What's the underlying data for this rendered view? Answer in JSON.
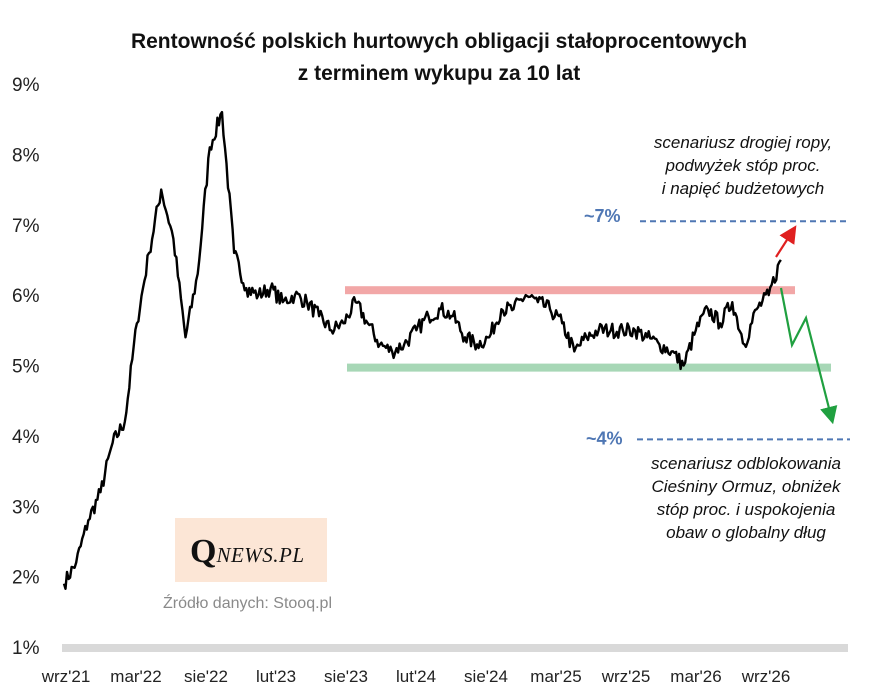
{
  "chart_data": {
    "type": "line",
    "title": "Rentowność polskich hurtowych obligacji stałoprocentowych z terminem wykupu za 10 lat",
    "title_lines": [
      "Rentowność polskich hurtowych obligacji stałoprocentowych",
      "z terminem wykupu za 10 lat"
    ],
    "ylim": [
      1,
      9
    ],
    "y_ticks": [
      "1%",
      "2%",
      "3%",
      "4%",
      "5%",
      "6%",
      "7%",
      "8%",
      "9%"
    ],
    "x_ticks": [
      "wrz'21",
      "mar'22",
      "sie'22",
      "lut'23",
      "sie'23",
      "lut'24",
      "sie'24",
      "mar'25",
      "wrz'25",
      "mar'26",
      "wrz'26"
    ],
    "grid": false,
    "legend": "none",
    "series": [
      {
        "color": "#000000",
        "points": [
          [
            "2021-09",
            1.9
          ],
          [
            "2021-10",
            2.2
          ],
          [
            "2021-11",
            2.8
          ],
          [
            "2021-12",
            3.2
          ],
          [
            "2022-01",
            3.9
          ],
          [
            "2022-02",
            4.2
          ],
          [
            "2022-03",
            5.6
          ],
          [
            "2022-04",
            6.6
          ],
          [
            "2022-05",
            7.5
          ],
          [
            "2022-06",
            6.8
          ],
          [
            "2022-07",
            5.4
          ],
          [
            "2022-08",
            6.3
          ],
          [
            "2022-09",
            8.1
          ],
          [
            "2022-10",
            8.6
          ],
          [
            "2022-11",
            6.6
          ],
          [
            "2022-12",
            6.1
          ],
          [
            "2023-01",
            6.0
          ],
          [
            "2023-02",
            6.1
          ],
          [
            "2023-03",
            5.9
          ],
          [
            "2023-04",
            6.0
          ],
          [
            "2023-05",
            5.9
          ],
          [
            "2023-06",
            5.7
          ],
          [
            "2023-07",
            5.5
          ],
          [
            "2023-08",
            5.6
          ],
          [
            "2023-09",
            5.9
          ],
          [
            "2023-10",
            5.6
          ],
          [
            "2023-11",
            5.3
          ],
          [
            "2023-12",
            5.2
          ],
          [
            "2024-01",
            5.3
          ],
          [
            "2024-02",
            5.5
          ],
          [
            "2024-03",
            5.7
          ],
          [
            "2024-04",
            5.8
          ],
          [
            "2024-05",
            5.7
          ],
          [
            "2024-06",
            5.4
          ],
          [
            "2024-07",
            5.3
          ],
          [
            "2024-08",
            5.4
          ],
          [
            "2024-09",
            5.8
          ],
          [
            "2024-10",
            5.8
          ],
          [
            "2024-11",
            6.0
          ],
          [
            "2024-12",
            5.9
          ],
          [
            "2025-01",
            5.8
          ],
          [
            "2025-02",
            5.6
          ],
          [
            "2025-03",
            5.2
          ],
          [
            "2025-04",
            5.4
          ],
          [
            "2025-05",
            5.5
          ],
          [
            "2025-06",
            5.5
          ],
          [
            "2025-07",
            5.5
          ],
          [
            "2025-08",
            5.5
          ],
          [
            "2025-09",
            5.4
          ],
          [
            "2025-10",
            5.3
          ],
          [
            "2025-11",
            5.2
          ],
          [
            "2025-12",
            5.0
          ],
          [
            "2026-01",
            5.5
          ],
          [
            "2026-02",
            5.8
          ],
          [
            "2026-03",
            5.6
          ],
          [
            "2026-04",
            5.9
          ],
          [
            "2026-05",
            5.3
          ],
          [
            "2026-06",
            5.8
          ],
          [
            "2026-07",
            6.0
          ],
          [
            "2026-08",
            6.5
          ]
        ]
      }
    ],
    "bands": [
      {
        "y": 6.07,
        "color": "#f2a7a7"
      },
      {
        "y": 4.97,
        "color": "#a7d7b6"
      }
    ],
    "levels": [
      {
        "label": "~7%",
        "y": 7.05
      },
      {
        "label": "~4%",
        "y": 3.95
      }
    ],
    "scenario_up": {
      "color": "#e02020",
      "lines": [
        "scenariusz drogiej ropy,",
        "podwyżek stóp proc.",
        "i napięć budżetowych"
      ]
    },
    "scenario_down": {
      "color": "#20a040",
      "lines": [
        "scenariusz odblokowania",
        "Cieśniny Ormuz, obniżek",
        "stóp proc. i uspokojenia",
        "obaw o globalny dług"
      ]
    }
  },
  "brand": {
    "logo_initial": "Q",
    "logo_rest": "NEWS.PL"
  },
  "source": "Źródło danych: Stooq.pl"
}
